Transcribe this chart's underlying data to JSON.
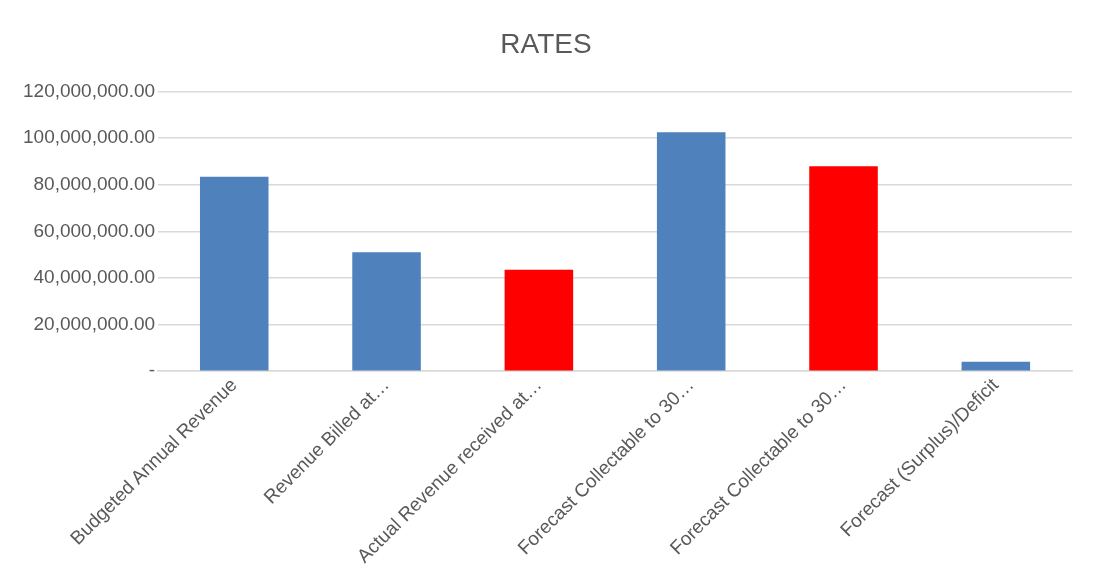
{
  "chart_data": {
    "type": "bar",
    "title": "RATES",
    "categories": [
      "Budgeted Annual Revenue",
      "Revenue Billed at…",
      "Actual Revenue received at…",
      "Forecast Collectable to 30…",
      "Forecast Collectable to 30…",
      "Forecast (Surplus)/Deficit"
    ],
    "values": [
      83500000,
      51000000,
      43500000,
      102500000,
      88000000,
      4000000
    ],
    "colors": [
      "#4f81bd",
      "#4f81bd",
      "#ff0000",
      "#4f81bd",
      "#ff0000",
      "#4f81bd"
    ],
    "ylim": [
      0,
      120000000
    ],
    "yticks": [
      {
        "value": 0,
        "label": "-"
      },
      {
        "value": 20000000,
        "label": "20,000,000.00"
      },
      {
        "value": 40000000,
        "label": "40,000,000.00"
      },
      {
        "value": 60000000,
        "label": "60,000,000.00"
      },
      {
        "value": 80000000,
        "label": "80,000,000.00"
      },
      {
        "value": 100000000,
        "label": "100,000,000.00"
      },
      {
        "value": 120000000,
        "label": "120,000,000.00"
      }
    ],
    "grid": "y",
    "legend": false
  }
}
